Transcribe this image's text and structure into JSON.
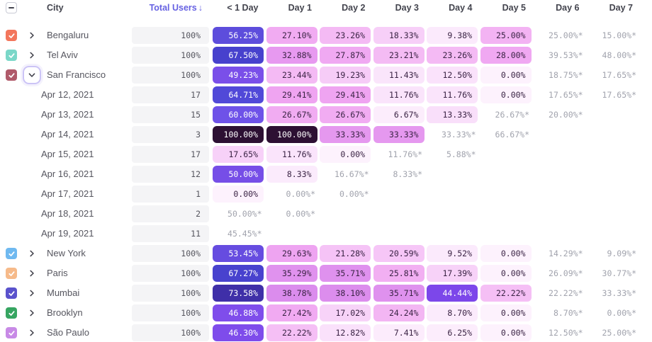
{
  "header": {
    "city": "City",
    "total_users": "Total Users",
    "sort_arrow": "↓",
    "days": [
      "< 1 Day",
      "Day 1",
      "Day 2",
      "Day 3",
      "Day 4",
      "Day 5",
      "Day 6",
      "Day 7"
    ]
  },
  "colors": {
    "accent": "#6661e2",
    "header_text": "#43444e",
    "label_text": "#56565f",
    "total_pill_bg": "#f4f4f6",
    "gray_value_text": "#a1a3ad",
    "cell_text_dark": "#3a2344",
    "cell_text_light": "#ffffff",
    "focus_ring": "#ccc4f6",
    "white_text_min": 44,
    "scale": [
      {
        "v": 0,
        "c": "#fdf2fd"
      },
      {
        "v": 10,
        "c": "#fbeafc"
      },
      {
        "v": 20,
        "c": "#f6c9f7"
      },
      {
        "v": 26,
        "c": "#f2aef2"
      },
      {
        "v": 31,
        "c": "#eda0f1"
      },
      {
        "v": 35,
        "c": "#e092ee"
      },
      {
        "v": 43.9,
        "c": "#d583ec"
      },
      {
        "v": 44,
        "c": "#7b46ea"
      },
      {
        "v": 48,
        "c": "#8150ec"
      },
      {
        "v": 52,
        "c": "#6a4ce2"
      },
      {
        "v": 57,
        "c": "#5b4ddb"
      },
      {
        "v": 60,
        "c": "#6e52e8"
      },
      {
        "v": 63,
        "c": "#5a4cde"
      },
      {
        "v": 66,
        "c": "#4a46d4"
      },
      {
        "v": 70,
        "c": "#4338c0"
      },
      {
        "v": 75,
        "c": "#3d2b9e"
      },
      {
        "v": 100,
        "c": "#2d1033"
      }
    ]
  },
  "table": {
    "select_all_state": "indeterminate",
    "rows": [
      {
        "type": "city",
        "label": "Bengaluru",
        "checkbox_color": "#f3765c",
        "checked": true,
        "expanded": false,
        "total": "100%",
        "cells": [
          {
            "t": "56.25%",
            "v": 56.25
          },
          {
            "t": "27.10%",
            "v": 27.1
          },
          {
            "t": "23.26%",
            "v": 23.26
          },
          {
            "t": "18.33%",
            "v": 18.33
          },
          {
            "t": "9.38%",
            "v": 9.38
          },
          {
            "t": "25.00%",
            "v": 25.0
          },
          {
            "t": "25.00%*"
          },
          {
            "t": "15.00%*"
          }
        ]
      },
      {
        "type": "city",
        "label": "Tel Aviv",
        "checkbox_color": "#7ad7c8",
        "checked": true,
        "expanded": false,
        "total": "100%",
        "cells": [
          {
            "t": "67.50%",
            "v": 67.5
          },
          {
            "t": "32.88%",
            "v": 32.88
          },
          {
            "t": "27.87%",
            "v": 27.87
          },
          {
            "t": "23.21%",
            "v": 23.21
          },
          {
            "t": "23.26%",
            "v": 23.26
          },
          {
            "t": "28.00%",
            "v": 28.0
          },
          {
            "t": "39.53%*"
          },
          {
            "t": "48.00%*"
          }
        ]
      },
      {
        "type": "city",
        "label": "San Francisco",
        "checkbox_color": "#b05a6a",
        "checked": true,
        "expanded": true,
        "total": "100%",
        "cells": [
          {
            "t": "49.23%",
            "v": 49.23
          },
          {
            "t": "23.44%",
            "v": 23.44
          },
          {
            "t": "19.23%",
            "v": 19.23
          },
          {
            "t": "11.43%",
            "v": 11.43
          },
          {
            "t": "12.50%",
            "v": 12.5
          },
          {
            "t": "0.00%",
            "v": 0.0
          },
          {
            "t": "18.75%*"
          },
          {
            "t": "17.65%*"
          }
        ]
      },
      {
        "type": "date",
        "label": "Apr 12, 2021",
        "total": "17",
        "cells": [
          {
            "t": "64.71%",
            "v": 64.71
          },
          {
            "t": "29.41%",
            "v": 29.41
          },
          {
            "t": "29.41%",
            "v": 29.41
          },
          {
            "t": "11.76%",
            "v": 11.76
          },
          {
            "t": "11.76%",
            "v": 11.76
          },
          {
            "t": "0.00%",
            "v": 0.0
          },
          {
            "t": "17.65%*"
          },
          {
            "t": "17.65%*"
          }
        ]
      },
      {
        "type": "date",
        "label": "Apr 13, 2021",
        "total": "15",
        "cells": [
          {
            "t": "60.00%",
            "v": 60.0
          },
          {
            "t": "26.67%",
            "v": 26.67
          },
          {
            "t": "26.67%",
            "v": 26.67
          },
          {
            "t": "6.67%",
            "v": 6.67
          },
          {
            "t": "13.33%",
            "v": 13.33
          },
          {
            "t": "26.67%*"
          },
          {
            "t": "20.00%*"
          },
          null
        ]
      },
      {
        "type": "date",
        "label": "Apr 14, 2021",
        "total": "3",
        "cells": [
          {
            "t": "100.00%",
            "v": 100.0
          },
          {
            "t": "100.00%",
            "v": 100.0
          },
          {
            "t": "33.33%",
            "v": 33.33
          },
          {
            "t": "33.33%",
            "v": 33.33
          },
          {
            "t": "33.33%*"
          },
          {
            "t": "66.67%*"
          },
          null,
          null
        ]
      },
      {
        "type": "date",
        "label": "Apr 15, 2021",
        "total": "17",
        "cells": [
          {
            "t": "17.65%",
            "v": 17.65
          },
          {
            "t": "11.76%",
            "v": 11.76
          },
          {
            "t": "0.00%",
            "v": 0.0
          },
          {
            "t": "11.76%*"
          },
          {
            "t": "5.88%*"
          },
          null,
          null,
          null
        ]
      },
      {
        "type": "date",
        "label": "Apr 16, 2021",
        "total": "12",
        "cells": [
          {
            "t": "50.00%",
            "v": 50.0
          },
          {
            "t": "8.33%",
            "v": 8.33
          },
          {
            "t": "16.67%*"
          },
          {
            "t": "8.33%*"
          },
          null,
          null,
          null,
          null
        ]
      },
      {
        "type": "date",
        "label": "Apr 17, 2021",
        "total": "1",
        "cells": [
          {
            "t": "0.00%",
            "v": 0.0
          },
          {
            "t": "0.00%*"
          },
          {
            "t": "0.00%*"
          },
          null,
          null,
          null,
          null,
          null
        ]
      },
      {
        "type": "date",
        "label": "Apr 18, 2021",
        "total": "2",
        "cells": [
          {
            "t": "50.00%*"
          },
          {
            "t": "0.00%*"
          },
          null,
          null,
          null,
          null,
          null,
          null
        ]
      },
      {
        "type": "date",
        "label": "Apr 19, 2021",
        "total": "11",
        "cells": [
          {
            "t": "45.45%*"
          },
          null,
          null,
          null,
          null,
          null,
          null,
          null
        ]
      },
      {
        "type": "city",
        "label": "New York",
        "checkbox_color": "#6fb9f0",
        "checked": true,
        "expanded": false,
        "total": "100%",
        "cells": [
          {
            "t": "53.45%",
            "v": 53.45
          },
          {
            "t": "29.63%",
            "v": 29.63
          },
          {
            "t": "21.28%",
            "v": 21.28
          },
          {
            "t": "20.59%",
            "v": 20.59
          },
          {
            "t": "9.52%",
            "v": 9.52
          },
          {
            "t": "0.00%",
            "v": 0.0
          },
          {
            "t": "14.29%*"
          },
          {
            "t": "9.09%*"
          }
        ]
      },
      {
        "type": "city",
        "label": "Paris",
        "checkbox_color": "#f6ba8a",
        "checked": true,
        "expanded": false,
        "total": "100%",
        "cells": [
          {
            "t": "67.27%",
            "v": 67.27
          },
          {
            "t": "35.29%",
            "v": 35.29
          },
          {
            "t": "35.71%",
            "v": 35.71
          },
          {
            "t": "25.81%",
            "v": 25.81
          },
          {
            "t": "17.39%",
            "v": 17.39
          },
          {
            "t": "0.00%",
            "v": 0.0
          },
          {
            "t": "26.09%*"
          },
          {
            "t": "30.77%*"
          }
        ]
      },
      {
        "type": "city",
        "label": "Mumbai",
        "checkbox_color": "#5a52cc",
        "checked": true,
        "expanded": false,
        "total": "100%",
        "cells": [
          {
            "t": "73.58%",
            "v": 73.58
          },
          {
            "t": "38.78%",
            "v": 38.78
          },
          {
            "t": "38.10%",
            "v": 38.1
          },
          {
            "t": "35.71%",
            "v": 35.71
          },
          {
            "t": "44.44%",
            "v": 44.44
          },
          {
            "t": "22.22%",
            "v": 22.22
          },
          {
            "t": "22.22%*"
          },
          {
            "t": "33.33%*"
          }
        ]
      },
      {
        "type": "city",
        "label": "Brooklyn",
        "checkbox_color": "#36a561",
        "checked": true,
        "expanded": false,
        "total": "100%",
        "cells": [
          {
            "t": "46.88%",
            "v": 46.88
          },
          {
            "t": "27.42%",
            "v": 27.42
          },
          {
            "t": "17.02%",
            "v": 17.02
          },
          {
            "t": "24.24%",
            "v": 24.24
          },
          {
            "t": "8.70%",
            "v": 8.7
          },
          {
            "t": "0.00%",
            "v": 0.0
          },
          {
            "t": "8.70%*"
          },
          {
            "t": "0.00%*"
          }
        ]
      },
      {
        "type": "city",
        "label": "São Paulo",
        "checkbox_color": "#c88ae6",
        "checked": true,
        "expanded": false,
        "total": "100%",
        "cells": [
          {
            "t": "46.30%",
            "v": 46.3
          },
          {
            "t": "22.22%",
            "v": 22.22
          },
          {
            "t": "12.82%",
            "v": 12.82
          },
          {
            "t": "7.41%",
            "v": 7.41
          },
          {
            "t": "6.25%",
            "v": 6.25
          },
          {
            "t": "0.00%",
            "v": 0.0
          },
          {
            "t": "12.50%*"
          },
          {
            "t": "25.00%*"
          }
        ]
      }
    ]
  }
}
